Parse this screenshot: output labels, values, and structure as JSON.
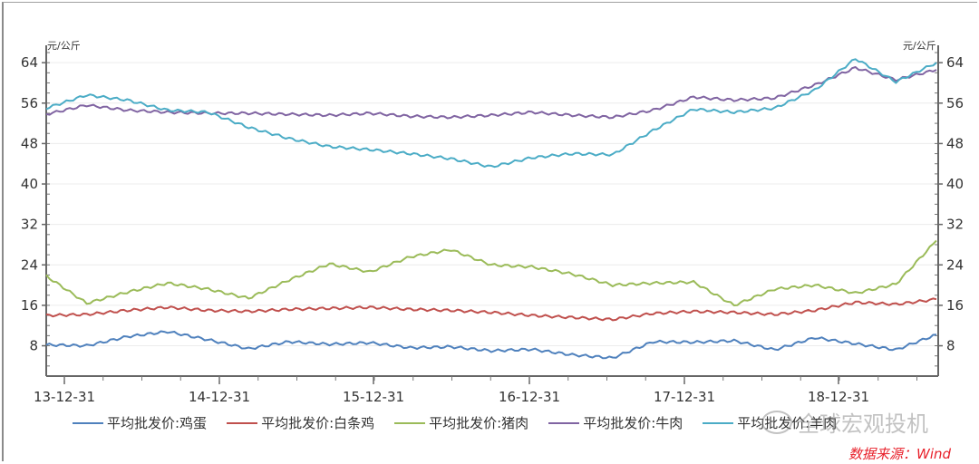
{
  "chart_data": {
    "type": "line",
    "title": "",
    "unit_left": "元/公斤",
    "unit_right": "元/公斤",
    "xlabel": "",
    "ylabel": "元/公斤",
    "ylim": [
      2,
      66
    ],
    "yticks": [
      8,
      16,
      24,
      32,
      40,
      48,
      56,
      64
    ],
    "grid": true,
    "legend_position": "bottom",
    "x_tick_labels": [
      "13-12-31",
      "14-12-31",
      "15-12-31",
      "16-12-31",
      "17-12-31",
      "18-12-31"
    ],
    "x": [
      "2013-11",
      "2014-03",
      "2014-06",
      "2014-09",
      "2014-12",
      "2015-03",
      "2015-06",
      "2015-09",
      "2015-12",
      "2016-03",
      "2016-06",
      "2016-09",
      "2016-12",
      "2017-03",
      "2017-06",
      "2017-09",
      "2017-12",
      "2018-03",
      "2018-06",
      "2018-09",
      "2018-12",
      "2019-03",
      "2019-05"
    ],
    "series": [
      {
        "name": "平均批发价:鸡蛋",
        "color": "#4f81bd",
        "values": [
          8.2,
          8.0,
          9.8,
          10.8,
          9.2,
          7.4,
          8.8,
          8.3,
          8.6,
          7.6,
          7.8,
          7.0,
          7.3,
          6.2,
          5.6,
          8.8,
          8.7,
          9.0,
          7.2,
          9.6,
          8.4,
          7.2,
          10.2
        ]
      },
      {
        "name": "平均批发价:白条鸡",
        "color": "#c0504d",
        "values": [
          14.0,
          14.2,
          15.0,
          15.6,
          15.0,
          14.8,
          15.2,
          15.4,
          15.6,
          15.2,
          15.0,
          14.6,
          14.0,
          13.6,
          13.2,
          14.4,
          14.8,
          14.6,
          14.2,
          15.0,
          16.6,
          16.2,
          17.2
        ]
      },
      {
        "name": "平均批发价:猪肉",
        "color": "#9bbb59",
        "values": [
          21.8,
          16.4,
          18.6,
          20.4,
          19.2,
          17.4,
          21.0,
          24.2,
          22.6,
          25.6,
          27.0,
          24.0,
          23.6,
          22.2,
          20.0,
          20.4,
          20.6,
          16.0,
          19.2,
          20.0,
          18.4,
          20.2,
          28.8
        ]
      },
      {
        "name": "平均批发价:牛肉",
        "color": "#8064a2",
        "values": [
          53.8,
          55.6,
          54.6,
          54.2,
          54.0,
          54.0,
          53.8,
          53.6,
          54.0,
          53.4,
          53.2,
          53.6,
          54.2,
          53.6,
          53.2,
          54.6,
          57.2,
          56.6,
          57.0,
          59.6,
          63.0,
          60.6,
          62.6
        ]
      },
      {
        "name": "平均批发价:羊肉",
        "color": "#4bacc6",
        "values": [
          55.0,
          57.6,
          56.6,
          54.6,
          54.2,
          51.2,
          49.0,
          47.4,
          46.8,
          46.0,
          45.0,
          43.4,
          45.2,
          46.0,
          45.8,
          50.6,
          54.8,
          54.2,
          55.0,
          58.6,
          64.8,
          60.2,
          64.0
        ]
      }
    ]
  },
  "legend": [
    {
      "label": "平均批发价:鸡蛋",
      "color": "#4f81bd"
    },
    {
      "label": "平均批发价:白条鸡",
      "color": "#c0504d"
    },
    {
      "label": "平均批发价:猪肉",
      "color": "#9bbb59"
    },
    {
      "label": "平均批发价:牛肉",
      "color": "#8064a2"
    },
    {
      "label": "平均批发价:羊肉",
      "color": "#4bacc6"
    }
  ],
  "source": "数据来源：Wind",
  "watermark": "全球宏观投机"
}
